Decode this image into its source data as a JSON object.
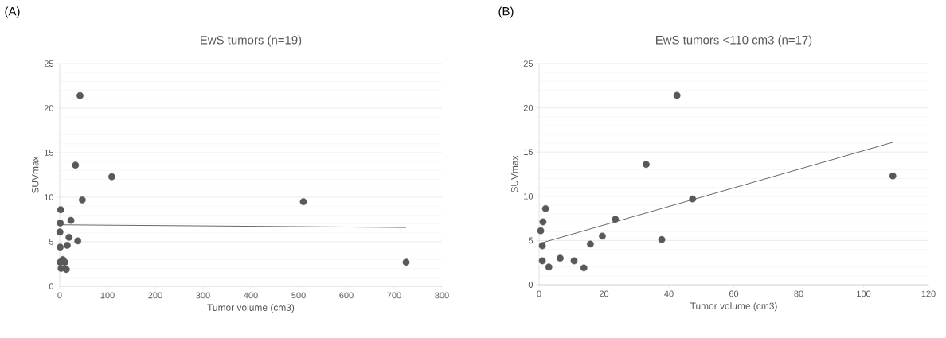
{
  "chart_data": [
    {
      "type": "scatter",
      "title": "EwS tumors (n=19)",
      "xlabel": "Tumor volume (cm3)",
      "ylabel": "SUVmax",
      "annotations": [
        "(A)"
      ],
      "xlim": [
        0,
        800
      ],
      "xticks": [
        0,
        100,
        200,
        300,
        400,
        500,
        600,
        700,
        800
      ],
      "ylim": [
        0,
        25
      ],
      "yticks": [
        0,
        5,
        10,
        15,
        20,
        25
      ],
      "grid": "y",
      "series": [
        {
          "color": "#595959",
          "marker": "circle",
          "x": [
            0.5,
            1,
            1,
            1.2,
            2,
            3,
            6.5,
            10.8,
            13.8,
            15.8,
            19.5,
            23.5,
            33,
            37.8,
            42.5,
            47.3,
            109,
            510,
            725
          ],
          "values": [
            6.1,
            4.4,
            2.7,
            7.1,
            8.6,
            2.0,
            3.0,
            2.7,
            1.9,
            4.6,
            5.5,
            7.4,
            13.6,
            5.1,
            21.4,
            9.7,
            12.3,
            9.5,
            2.7
          ]
        },
        {
          "type": "line",
          "marker": "none",
          "color": "#000000",
          "x": [
            0,
            725
          ],
          "values": [
            6.9,
            6.6
          ]
        }
      ]
    },
    {
      "type": "scatter",
      "title": "EwS tumors <110 cm3 (n=17)",
      "xlabel": "Tumor volume (cm3)",
      "ylabel": "SUVmax",
      "annotations": [
        "(B)"
      ],
      "xlim": [
        0,
        120
      ],
      "xticks": [
        0,
        20,
        40,
        60,
        80,
        100,
        120
      ],
      "ylim": [
        0,
        25
      ],
      "yticks": [
        0,
        5,
        10,
        15,
        20,
        25
      ],
      "grid": "y",
      "series": [
        {
          "color": "#595959",
          "marker": "circle",
          "x": [
            0.5,
            1,
            1,
            1.2,
            2,
            3,
            6.5,
            10.8,
            13.8,
            15.8,
            19.5,
            23.5,
            33,
            37.8,
            42.5,
            47.3,
            109
          ],
          "values": [
            6.1,
            4.4,
            2.7,
            7.1,
            8.6,
            2.0,
            3.0,
            2.7,
            1.9,
            4.6,
            5.5,
            7.4,
            13.6,
            5.1,
            21.4,
            9.7,
            12.3
          ]
        },
        {
          "type": "line",
          "marker": "none",
          "color": "#000000",
          "x": [
            0.5,
            109
          ],
          "values": [
            4.7,
            16.1
          ]
        }
      ]
    }
  ]
}
